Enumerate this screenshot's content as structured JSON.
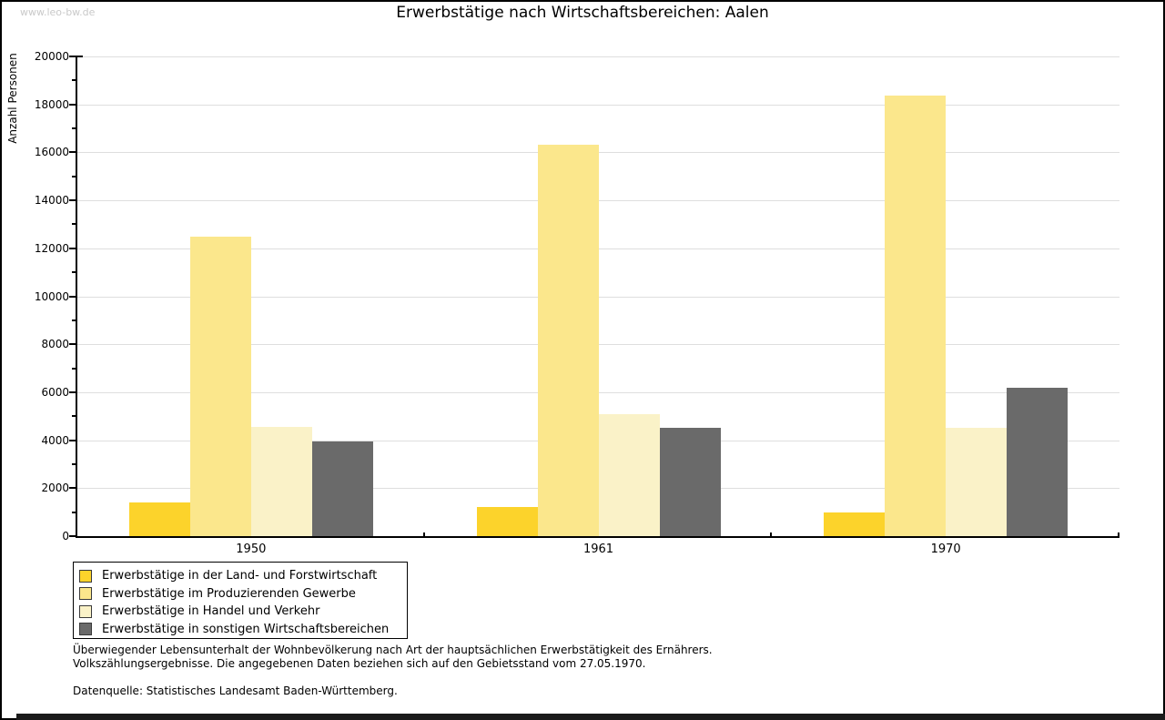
{
  "watermark": "www.leo-bw.de",
  "chart_data": {
    "type": "bar",
    "title": "Erwerbstätige nach Wirtschaftsbereichen: Aalen",
    "xlabel": "",
    "ylabel": "Anzahl Personen",
    "ylim": [
      0,
      20000
    ],
    "ytick_step": 2000,
    "minor_tick_step": 1000,
    "grid": "horizontal-major",
    "legend_position": "bottom-left",
    "categories": [
      "1950",
      "1961",
      "1970"
    ],
    "series": [
      {
        "name": "Erwerbstätige in der Land- und Forstwirtschaft",
        "color": "#FCD32B",
        "values": [
          1400,
          1200,
          1000
        ]
      },
      {
        "name": "Erwerbstätige im Produzierenden Gewerbe",
        "color": "#FBE78C",
        "values": [
          12500,
          16300,
          18350
        ]
      },
      {
        "name": "Erwerbstätige in Handel und Verkehr",
        "color": "#FAF2C8",
        "values": [
          4550,
          5100,
          4500
        ]
      },
      {
        "name": "Erwerbstätige in sonstigen Wirtschaftsbereichen",
        "color": "#6A6A6A",
        "values": [
          3950,
          4530,
          6200
        ]
      }
    ]
  },
  "footnotes": {
    "line1": "Überwiegender Lebensunterhalt der Wohnbevölkerung nach Art der hauptsächlichen Erwerbstätigkeit des Ernährers.",
    "line2": "Volkszählungsergebnisse. Die angegebenen Daten beziehen sich auf den Gebietsstand vom 27.05.1970.",
    "source": "Datenquelle: Statistisches Landesamt Baden-Württemberg."
  },
  "colors": {
    "grid": "#DEDEDE",
    "axis": "#000000",
    "watermark": "#C9C9C9",
    "background": "#FFFFFF"
  }
}
